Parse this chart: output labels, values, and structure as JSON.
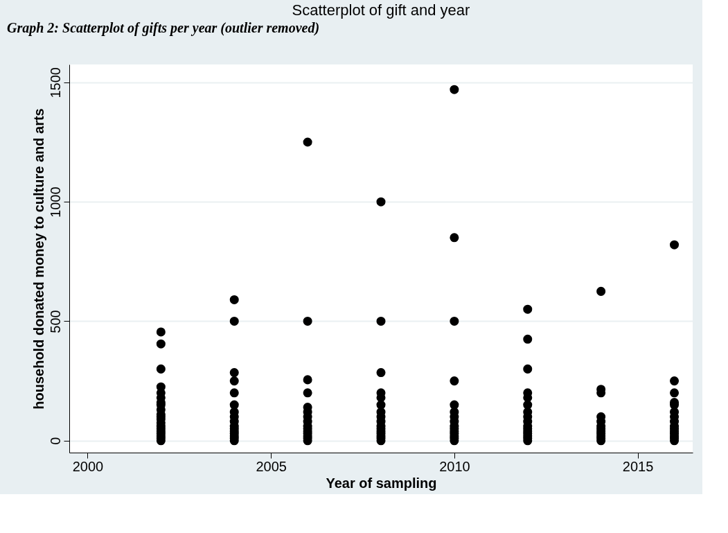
{
  "chart_data": {
    "type": "scatter",
    "title": "Scatterplot of gift and year",
    "xlabel": "Year of sampling",
    "ylabel": "household donated money to culture and arts",
    "annotations": [
      "Graph 2: Scatterplot of gifts per year (outlier removed)"
    ],
    "series": [
      {
        "color": "#000000",
        "x": [
          2002,
          2002,
          2002,
          2002,
          2002,
          2002,
          2002,
          2002,
          2002,
          2002,
          2002,
          2002,
          2002,
          2002,
          2002,
          2002,
          2002,
          2002,
          2002,
          2002,
          2004,
          2004,
          2004,
          2004,
          2004,
          2004,
          2004,
          2004,
          2004,
          2004,
          2004,
          2004,
          2004,
          2004,
          2004,
          2004,
          2006,
          2006,
          2006,
          2006,
          2006,
          2006,
          2006,
          2006,
          2006,
          2006,
          2006,
          2006,
          2006,
          2006,
          2006,
          2008,
          2008,
          2008,
          2008,
          2008,
          2008,
          2008,
          2008,
          2008,
          2008,
          2008,
          2008,
          2008,
          2008,
          2008,
          2008,
          2010,
          2010,
          2010,
          2010,
          2010,
          2010,
          2010,
          2010,
          2010,
          2010,
          2010,
          2010,
          2010,
          2010,
          2010,
          2012,
          2012,
          2012,
          2012,
          2012,
          2012,
          2012,
          2012,
          2012,
          2012,
          2012,
          2012,
          2012,
          2012,
          2012,
          2012,
          2014,
          2014,
          2014,
          2014,
          2014,
          2014,
          2014,
          2014,
          2014,
          2014,
          2014,
          2014,
          2016,
          2016,
          2016,
          2016,
          2016,
          2016,
          2016,
          2016,
          2016,
          2016,
          2016,
          2016,
          2016,
          2016,
          2016
        ],
        "values": [
          455,
          405,
          300,
          225,
          200,
          180,
          160,
          150,
          130,
          110,
          100,
          90,
          75,
          60,
          50,
          40,
          30,
          20,
          10,
          0,
          590,
          500,
          285,
          250,
          200,
          150,
          120,
          100,
          80,
          60,
          50,
          40,
          30,
          20,
          10,
          0,
          1250,
          500,
          255,
          200,
          140,
          120,
          100,
          80,
          60,
          50,
          40,
          30,
          20,
          10,
          0,
          1000,
          500,
          285,
          200,
          180,
          150,
          120,
          100,
          80,
          60,
          50,
          40,
          30,
          20,
          10,
          0,
          1470,
          850,
          500,
          250,
          150,
          120,
          100,
          80,
          60,
          50,
          40,
          30,
          20,
          10,
          0,
          550,
          425,
          300,
          200,
          180,
          150,
          120,
          100,
          80,
          60,
          50,
          40,
          30,
          20,
          10,
          0,
          625,
          215,
          200,
          100,
          80,
          60,
          50,
          40,
          30,
          20,
          10,
          0,
          820,
          250,
          200,
          160,
          150,
          120,
          100,
          80,
          60,
          50,
          40,
          30,
          20,
          10,
          0
        ]
      }
    ],
    "xlim": [
      1999.5,
      2016.5
    ],
    "xticks": [
      2000,
      2005,
      2010,
      2015
    ],
    "ylim": [
      -50,
      1575
    ],
    "yticks": [
      0,
      500,
      1000,
      1500
    ],
    "grid": "y",
    "marker": "circle",
    "legend": false
  }
}
